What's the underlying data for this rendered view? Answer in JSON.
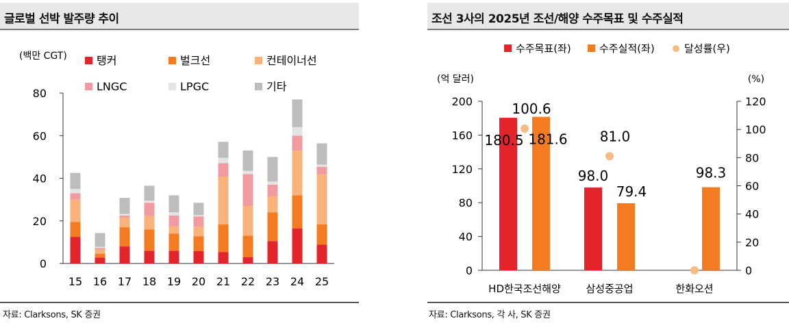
{
  "panels": {
    "left": {
      "title": "글로벌 선박 발주량 추이",
      "source": "자료: Clarksons, SK 증권"
    },
    "right": {
      "title": "조선 3사의 2025년 조선/해양 수주목표 및 수주실적",
      "source": "자료: Clarksons, 각 사, SK 증권"
    }
  },
  "chart_data": [
    {
      "type": "bar",
      "stacked": true,
      "title": "글로벌 선박 발주량 추이",
      "ylabel": "(백만 CGT)",
      "xlabel": "",
      "ylim": [
        0,
        80
      ],
      "yticks": [
        0,
        20,
        40,
        60,
        80
      ],
      "categories": [
        "15",
        "16",
        "17",
        "18",
        "19",
        "20",
        "21",
        "22",
        "23",
        "24",
        "25"
      ],
      "series": [
        {
          "name": "탱커",
          "color": "#e3242b",
          "values": [
            12.5,
            2.8,
            8.0,
            6.0,
            6.0,
            5.8,
            5.3,
            3.0,
            10.5,
            16.5,
            8.9
          ]
        },
        {
          "name": "벌크선",
          "color": "#f47b20",
          "values": [
            7.0,
            1.8,
            9.0,
            10.0,
            8.0,
            7.0,
            13.0,
            10.0,
            13.5,
            15.5,
            9.5
          ]
        },
        {
          "name": "컨테이너선",
          "color": "#fab27b",
          "values": [
            10.5,
            2.0,
            4.5,
            6.5,
            3.5,
            4.5,
            22.5,
            14.0,
            7.5,
            21.0,
            23.5
          ]
        },
        {
          "name": "LNGC",
          "color": "#f19ba0",
          "values": [
            3.0,
            0.7,
            1.0,
            6.0,
            5.0,
            4.8,
            6.3,
            15.0,
            5.5,
            7.0,
            3.5
          ]
        },
        {
          "name": "LPGC",
          "color": "#e4e4e4",
          "values": [
            2.0,
            0.5,
            0.8,
            1.0,
            1.5,
            0.6,
            2.5,
            1.5,
            1.5,
            4.0,
            1.0
          ]
        },
        {
          "name": "기타",
          "color": "#bdbdbd",
          "values": [
            7.5,
            6.5,
            7.5,
            7.0,
            8.0,
            5.8,
            7.5,
            9.5,
            11.5,
            13.0,
            10.0
          ]
        }
      ]
    },
    {
      "type": "bar",
      "title": "조선 3사의 2025년 조선/해양 수주목표 및 수주실적",
      "ylabel": "(억 달러)",
      "y2label": "(%)",
      "ylim": [
        0,
        200
      ],
      "yticks": [
        0,
        40,
        80,
        120,
        160,
        200
      ],
      "y2lim": [
        0,
        120
      ],
      "y2ticks": [
        0,
        20,
        40,
        60,
        80,
        100,
        120
      ],
      "categories": [
        "HD한국조선해양",
        "삼성중공업",
        "한화오션"
      ],
      "series": [
        {
          "name": "수주목표(좌)",
          "color": "#e3242b",
          "values": [
            180.5,
            98.0,
            null
          ],
          "labels": [
            "180.5",
            "98.0",
            ""
          ]
        },
        {
          "name": "수주실적(좌)",
          "color": "#f47b20",
          "values": [
            181.6,
            79.4,
            98.3
          ],
          "labels": [
            "181.6",
            "79.4",
            "98.3"
          ]
        },
        {
          "name": "달성률(우)",
          "color": "#f9bb85",
          "type": "scatter",
          "axis": "right",
          "values": [
            100.6,
            81.0,
            0
          ],
          "labels": [
            "100.6",
            "81.0",
            ""
          ]
        }
      ]
    }
  ]
}
